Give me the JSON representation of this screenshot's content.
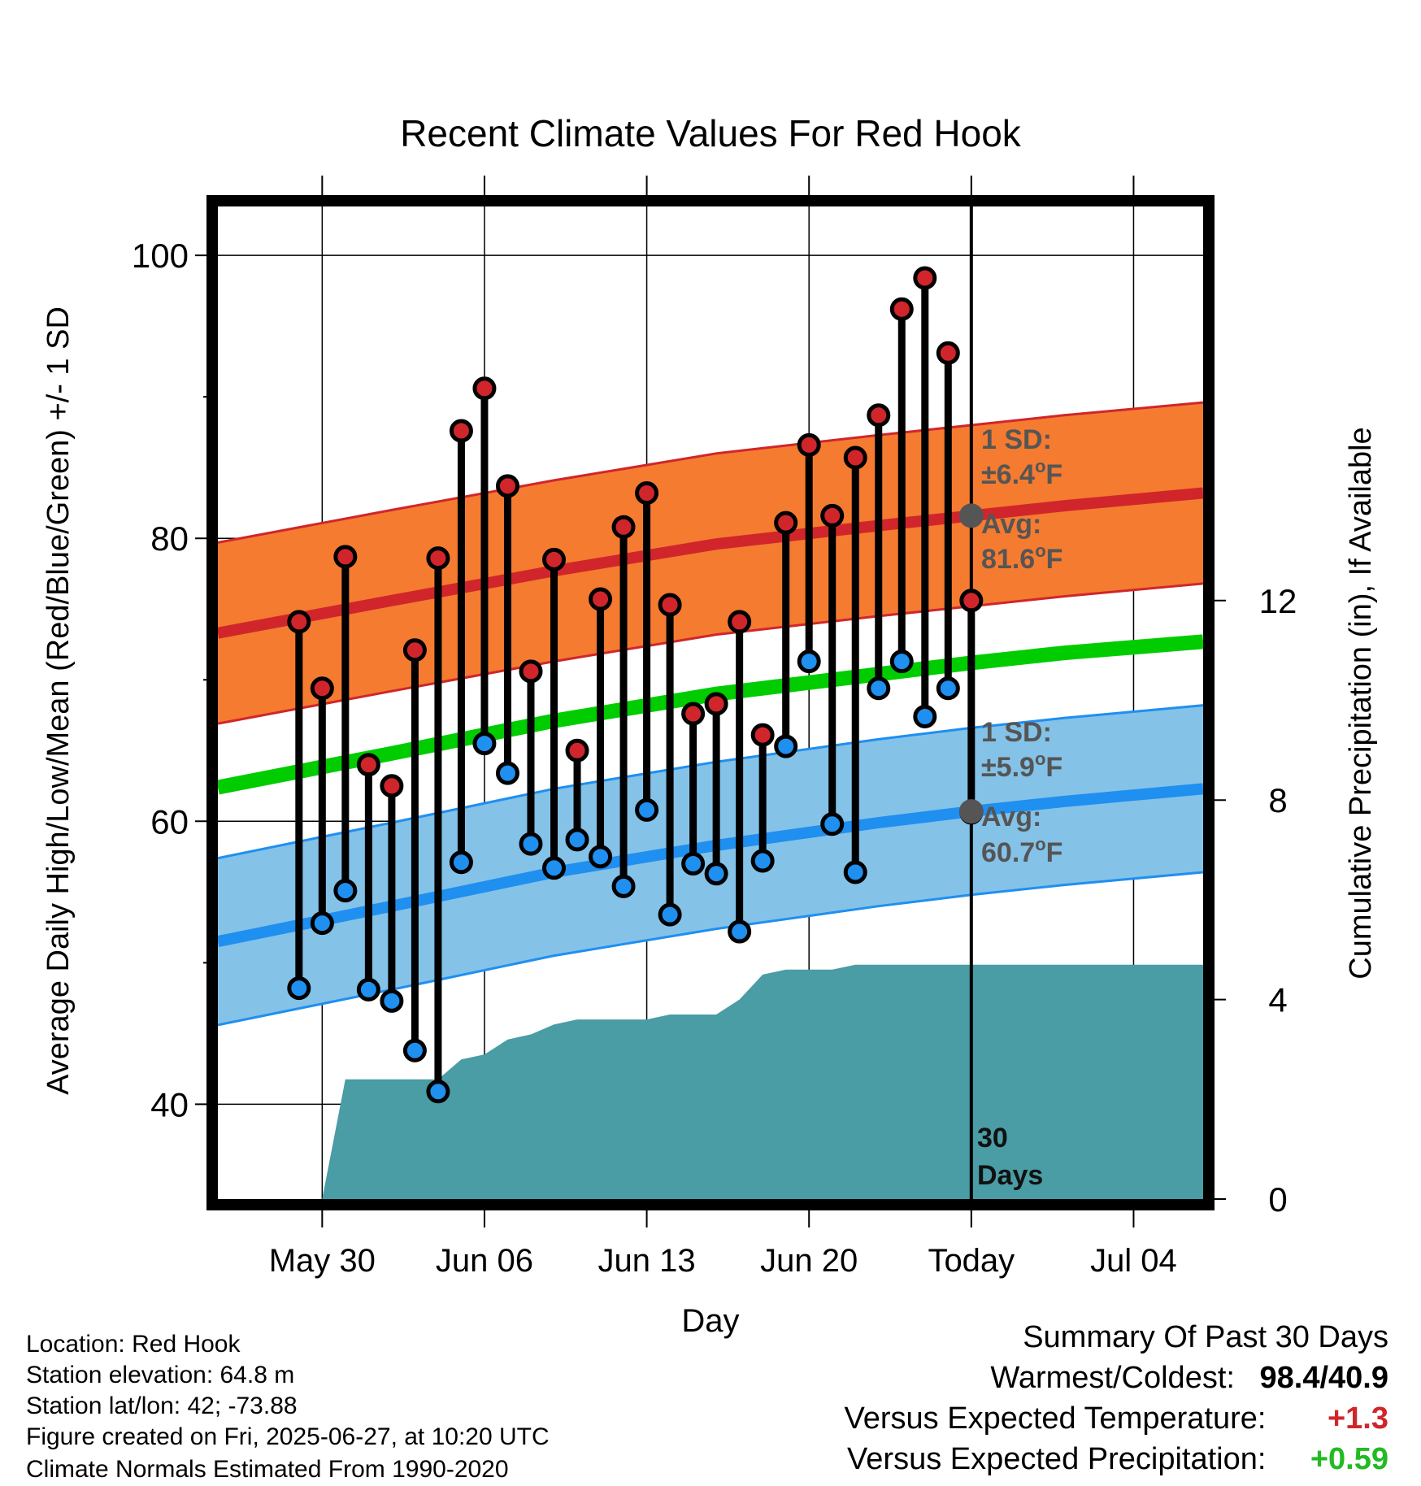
{
  "chart_data": {
    "type": "line",
    "title": "Recent Climate Values For Red Hook",
    "xlabel": "Day",
    "ylabel_left": "Average Daily High/Low/Mean (Red/Blue/Green) +/- 1 SD",
    "ylabel_right": "Cumulative Precipitation (in), If Available",
    "ylim_left": [
      33.3,
      103.8
    ],
    "ylim_right": [
      0,
      20
    ],
    "yticks_left": [
      40,
      60,
      80,
      100
    ],
    "yticks_right": [
      0,
      4,
      8,
      12
    ],
    "grid": true,
    "x_range_days": [
      -32.5,
      10
    ],
    "x_ticks": [
      {
        "day": -28,
        "label": "May 30"
      },
      {
        "day": -21,
        "label": "Jun 06"
      },
      {
        "day": -14,
        "label": "Jun 13"
      },
      {
        "day": -7,
        "label": "Jun 20"
      },
      {
        "day": 0,
        "label": "Today"
      },
      {
        "day": 7,
        "label": "Jul 04"
      }
    ],
    "normals": {
      "days": [
        -32.5,
        -25,
        -18,
        -11,
        -4,
        0,
        4,
        10
      ],
      "high_avg": [
        73.3,
        75.6,
        77.7,
        79.6,
        80.9,
        81.6,
        82.3,
        83.2
      ],
      "high_sd": 6.4,
      "low_avg": [
        51.5,
        54.0,
        56.4,
        58.3,
        59.9,
        60.7,
        61.4,
        62.3
      ],
      "low_sd": 5.9,
      "mean_avg": [
        62.4,
        64.8,
        67.1,
        69.0,
        70.4,
        71.2,
        71.9,
        72.7
      ]
    },
    "series": [
      {
        "name": "High",
        "color": "#d0262b",
        "values": [
          74.1,
          69.4,
          78.7,
          64.0,
          62.5,
          72.1,
          78.6,
          87.6,
          90.6,
          83.7,
          70.6,
          78.5,
          65.0,
          75.7,
          80.8,
          83.2,
          75.3,
          67.6,
          68.3,
          74.1,
          66.1,
          81.1,
          86.6,
          81.6,
          85.7,
          88.7,
          96.2,
          98.4,
          93.1,
          75.6
        ]
      },
      {
        "name": "Low",
        "color": "#1f8ff0",
        "values": [
          48.2,
          52.8,
          55.1,
          48.1,
          47.3,
          43.8,
          40.9,
          57.1,
          65.5,
          63.4,
          58.4,
          56.7,
          58.7,
          57.5,
          55.4,
          60.8,
          53.4,
          57.0,
          56.3,
          52.2,
          57.2,
          65.3,
          71.3,
          59.8,
          56.4,
          69.4,
          71.3,
          67.4,
          69.4,
          60.6
        ]
      }
    ],
    "daily_days": [
      -29,
      -28,
      -27,
      -26,
      -25,
      -24,
      -23,
      -22,
      -21,
      -20,
      -19,
      -18,
      -17,
      -16,
      -15,
      -14,
      -13,
      -12,
      -11,
      -10,
      -9,
      -8,
      -7,
      -6,
      -5,
      -4,
      -3,
      -2,
      -1,
      0
    ],
    "precip_cumulative": {
      "days": [
        -28,
        -27,
        -26,
        -25,
        -24,
        -23,
        -22,
        -21,
        -20,
        -19,
        -18,
        -17,
        -16,
        -15,
        -14,
        -13,
        -12,
        -11,
        -10,
        -9,
        -8,
        -7,
        -6,
        -5,
        -4,
        -3,
        -2,
        -1,
        0,
        10
      ],
      "values": [
        0,
        2.4,
        2.4,
        2.4,
        2.4,
        2.4,
        2.8,
        2.9,
        3.2,
        3.3,
        3.5,
        3.6,
        3.6,
        3.6,
        3.6,
        3.7,
        3.7,
        3.7,
        4.0,
        4.5,
        4.6,
        4.6,
        4.6,
        4.7,
        4.7,
        4.7,
        4.7,
        4.7,
        4.7,
        4.7
      ],
      "color": "#4a9ca5"
    },
    "annotations": {
      "high_sd_label": "1 SD:",
      "high_sd_value": "±6.4",
      "high_avg_label": "Avg:",
      "high_avg_value": "81.6",
      "low_sd_label": "1 SD:",
      "low_sd_value": "±5.9",
      "low_avg_label": "Avg:",
      "low_avg_value": "60.7",
      "degree_sup": "o",
      "unit": "F",
      "days_count": "30",
      "days_word": "Days"
    },
    "colors": {
      "high_band": "#f47b30",
      "high_line": "#d0262b",
      "low_band": "#84c2e8",
      "low_line": "#1f8ff0",
      "mean_line": "#00cc00",
      "precip": "#4a9ca5",
      "annotation": "#555555"
    }
  },
  "metadata": {
    "location": "Location: Red Hook",
    "elevation": "Station elevation: 64.8 m",
    "latlon": "Station lat/lon: 42; -73.88",
    "created": "Figure created on Fri, 2025-06-27, at 10:20 UTC",
    "normals": "Climate Normals Estimated From 1990-2020"
  },
  "summary": {
    "title": "Summary Of Past 30 Days",
    "warm_cold_label": "Warmest/Coldest:",
    "warm_cold_value": "98.4/40.9",
    "temp_label": "Versus Expected Temperature:",
    "temp_value": "+1.3",
    "temp_color": "#d0262b",
    "precip_label": "Versus Expected Precipitation:",
    "precip_value": "+0.59",
    "precip_color": "#22bb22"
  }
}
